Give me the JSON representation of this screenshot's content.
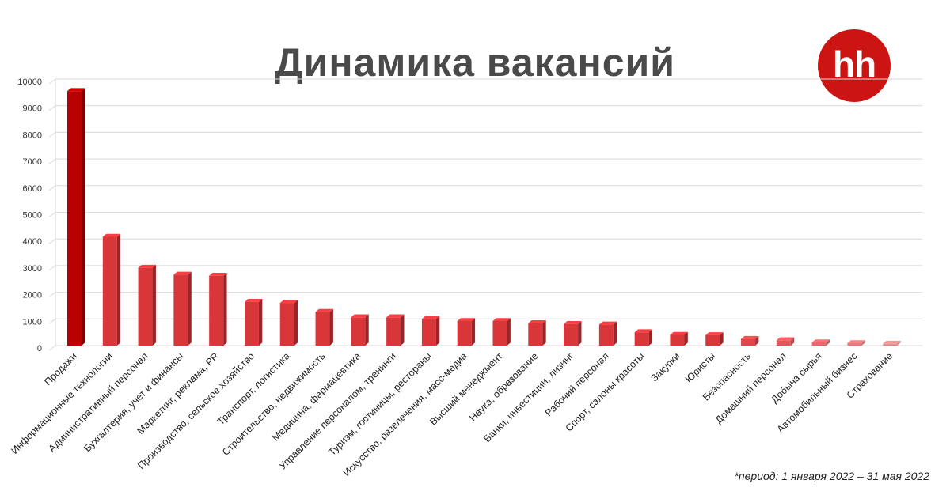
{
  "title": "Динамика вакансий",
  "logo_text": "hh",
  "footnote": "*период: 1 января 2022 – 31 мая 2022",
  "colors": {
    "bar_dark": "#b80000",
    "bar": "#d9363a",
    "grid": "#d9d9d9",
    "logo": "#cc1412"
  },
  "chart_data": {
    "type": "bar",
    "title": "Динамика вакансий",
    "xlabel": "",
    "ylabel": "",
    "ylim": [
      0,
      10000
    ],
    "yticks": [
      0,
      1000,
      2000,
      3000,
      4000,
      5000,
      6000,
      7000,
      8000,
      9000,
      10000
    ],
    "grid": true,
    "categories": [
      "Продажи",
      "Информационные технологии",
      "Административный персонал",
      "Бухгалтерия, учет и финансы",
      "Маркетинг, реклама, PR",
      "Производство, сельское хозяйство",
      "Транспорт, логистика",
      "Строительство, недвижимость",
      "Медицина, фармацевтика",
      "Управление персоналом, тренинги",
      "Туризм, гостиницы, рестораны",
      "Искусство, развлечения, масс-медиа",
      "Высший менеджмент",
      "Наука, образование",
      "Банки, инвестиции, лизинг",
      "Рабочий персонал",
      "Спорт, салоны красоты",
      "Закупки",
      "Юристы",
      "Безопасность",
      "Домашний персонал",
      "Добыча сырья",
      "Автомобильный бизнес",
      "Страхование"
    ],
    "values": [
      9550,
      4080,
      2920,
      2660,
      2620,
      1640,
      1600,
      1260,
      1060,
      1060,
      1000,
      920,
      920,
      840,
      810,
      790,
      500,
      400,
      390,
      250,
      200,
      120,
      90,
      70
    ]
  }
}
